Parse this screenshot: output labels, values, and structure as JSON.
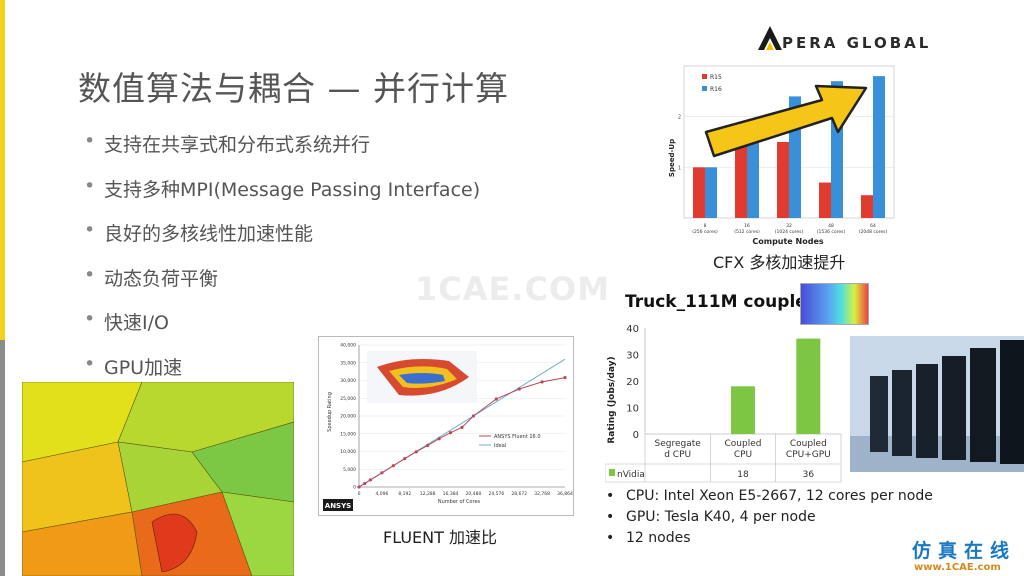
{
  "slide": {
    "title": "数值算法与耦合 — 并行计算",
    "bullets": [
      "支持在共享式和分布式系统并行",
      "支持多种MPI(Message Passing Interface)",
      "良好的多核线性加速性能",
      "动态负荷平衡",
      "快速I/O",
      "GPU加速"
    ],
    "logo_text": "PERA GLOBAL",
    "watermark": "1CAE.COM",
    "cfx_caption": "CFX 多核加速提升",
    "fluent_caption": "FLUENT 加速比",
    "truck_title": "Truck_111M coupled",
    "specs": [
      "CPU: Intel Xeon E5-2667, 12 cores per node",
      "GPU: Tesla K40, 4 per node",
      "12 nodes"
    ],
    "corner_cn": "仿真在线",
    "corner_url": "www.1CAE.com",
    "bullet_glyph": "•",
    "colors": {
      "accent": "#f3d31a",
      "r15": "#e03b2e",
      "r16": "#3a8fd9",
      "nvidia": "#7cc644",
      "fluent_series": "#b84a5a",
      "ideal": "#6ab0cc",
      "arrow": "#f5c518"
    }
  },
  "chart_data": [
    {
      "type": "bar",
      "ylabel": "Speed-Up",
      "xlabel": "Compute Nodes",
      "categories": [
        "8\n(256 cores)",
        "16\n(512 cores)",
        "32\n(1024 cores)",
        "48\n(1536 cores)",
        "64\n(2048 cores)"
      ],
      "category_top": [
        "8",
        "16",
        "32",
        "48",
        "64"
      ],
      "category_bottom": [
        "(256 cores)",
        "(512 cores)",
        "(1024 cores)",
        "(1536 cores)",
        "(2048 cores)"
      ],
      "series": [
        {
          "name": "R15",
          "values": [
            1.0,
            1.5,
            1.5,
            0.7,
            0.45
          ]
        },
        {
          "name": "R16",
          "values": [
            1.0,
            1.55,
            2.4,
            2.7,
            2.8
          ]
        }
      ],
      "ylim": [
        0,
        3
      ],
      "yticks": [
        1,
        2
      ],
      "legend": "top-left"
    },
    {
      "type": "line",
      "ylabel": "Speedup Rating",
      "xlabel": "Number of Cores",
      "xticks": [
        "0",
        "4,096",
        "8,192",
        "12,288",
        "16,384",
        "20,480",
        "24,576",
        "28,672",
        "32,768",
        "36,864"
      ],
      "yticks": [
        "0",
        "5,000",
        "10,000",
        "15,000",
        "20,000",
        "25,000",
        "30,000",
        "35,000",
        "40,000"
      ],
      "xlim": [
        0,
        36864
      ],
      "ylim": [
        0,
        40000
      ],
      "series": [
        {
          "name": "ANSYS Fluent 16.0",
          "x": [
            0,
            1024,
            2048,
            4096,
            6144,
            8192,
            10240,
            12288,
            14336,
            16384,
            18432,
            20480,
            24576,
            28672,
            32768,
            36864
          ],
          "y": [
            0,
            1000,
            2000,
            4000,
            6000,
            8000,
            9900,
            11700,
            13600,
            15300,
            16800,
            20000,
            24800,
            27600,
            29600,
            30800
          ]
        },
        {
          "name": "Ideal",
          "x": [
            0,
            36864
          ],
          "y": [
            0,
            36000
          ]
        }
      ],
      "legend": "center-right",
      "logo_text": "ANSYS"
    },
    {
      "type": "bar",
      "title": "Truck_111M coupled",
      "ylabel": "Rating (Jobs/day)",
      "categories": [
        "Segregate\nd CPU",
        "Coupled\nCPU",
        "Coupled\nCPU+GPU"
      ],
      "category_lines": [
        [
          "Segregate",
          "d CPU"
        ],
        [
          "Coupled",
          "CPU"
        ],
        [
          "Coupled",
          "CPU+GPU"
        ]
      ],
      "series": [
        {
          "name": "nVidia",
          "values": [
            null,
            18,
            36
          ]
        }
      ],
      "table_values": [
        "",
        "18",
        "36"
      ],
      "ylim": [
        0,
        40
      ],
      "yticks": [
        0,
        10,
        20,
        30,
        40
      ]
    }
  ]
}
